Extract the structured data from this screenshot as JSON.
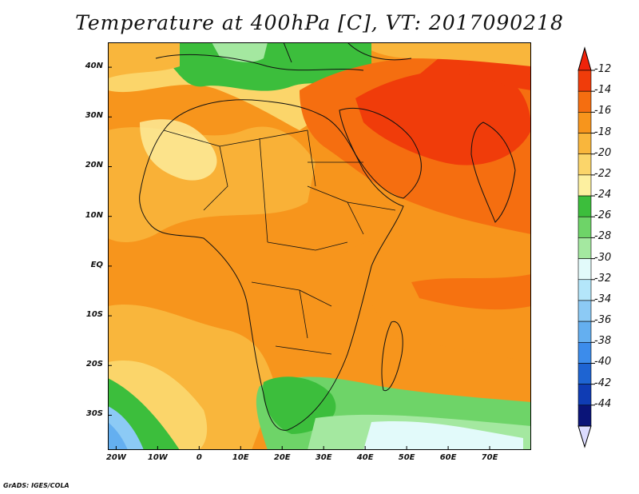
{
  "title": "Temperature at 400hPa [C], VT: 2017090218",
  "footer": "GrADS: IGES/COLA",
  "map": {
    "lon_range": [
      -22,
      80
    ],
    "lat_range": [
      -37,
      45
    ],
    "lat_ticks": [
      "40N",
      "30N",
      "20N",
      "10N",
      "EQ",
      "10S",
      "20S",
      "30S"
    ],
    "lat_values": [
      40,
      30,
      20,
      10,
      0,
      -10,
      -20,
      -30
    ],
    "lon_ticks": [
      "20W",
      "10W",
      "0",
      "10E",
      "20E",
      "30E",
      "40E",
      "50E",
      "60E",
      "70E"
    ],
    "lon_values": [
      -20,
      -10,
      0,
      10,
      20,
      30,
      40,
      50,
      60,
      70
    ]
  },
  "colorbar": {
    "labels": [
      "-12",
      "-14",
      "-16",
      "-18",
      "-20",
      "-22",
      "-24",
      "-26",
      "-28",
      "-30",
      "-32",
      "-34",
      "-36",
      "-38",
      "-40",
      "-42",
      "-44"
    ],
    "colors": [
      "#f03c0a",
      "#f56e10",
      "#f7951c",
      "#f9b63c",
      "#fbd56a",
      "#fdf0a0",
      "#3cbe3c",
      "#6ed468",
      "#a4e8a0",
      "#e2fafa",
      "#b4e6fa",
      "#8ccaf5",
      "#64aff0",
      "#3c8ceb",
      "#1e64d2",
      "#0f3cb4",
      "#0a1478"
    ],
    "top_arrow_color": "#f0230a",
    "bottom_arrow_color": "#dcdcff"
  }
}
